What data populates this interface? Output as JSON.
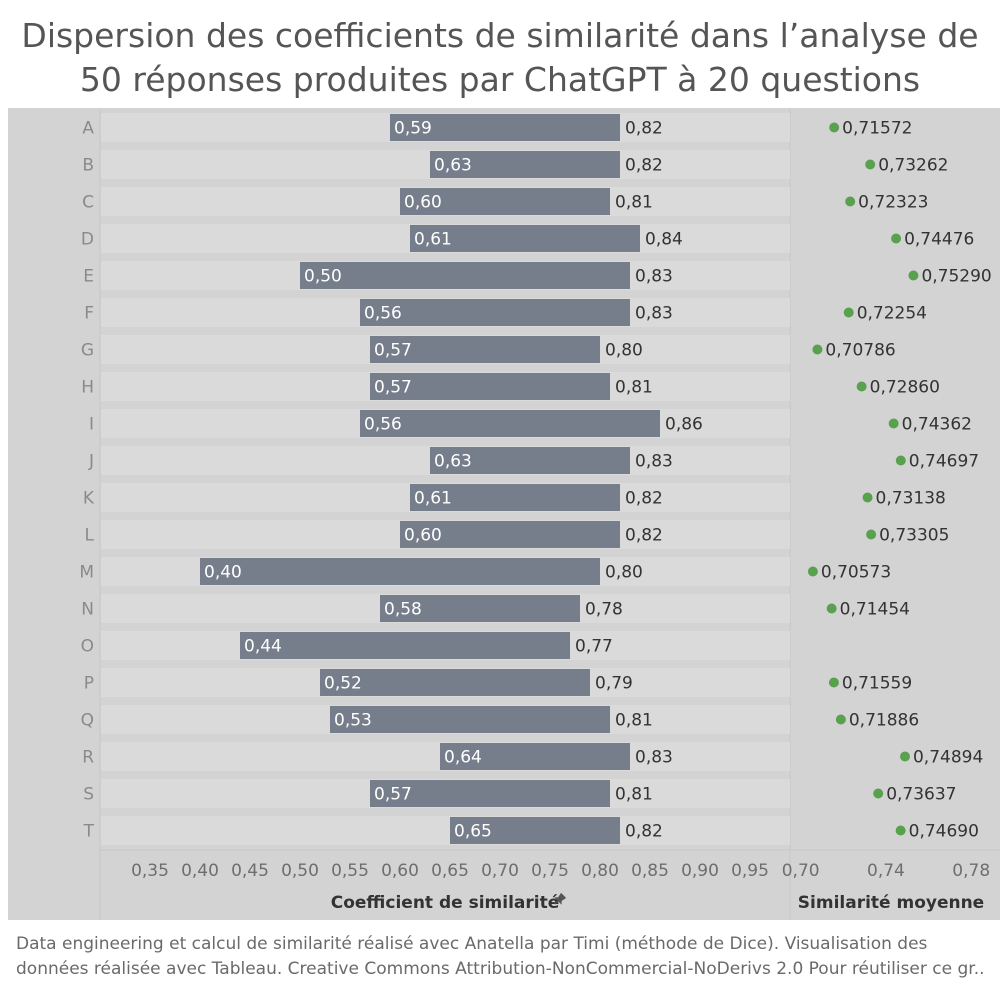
{
  "title_line1": "Dispersion des coefficients de similarité dans l’analyse de",
  "title_line2": "50 réponses produites par ChatGPT à 20 questions",
  "footer_line1": "Data engineering et calcul de similarité réalisé avec Anatella par Timi (méthode de Dice). Visualisation des",
  "footer_line2": "données réalisée avec Tableau. Creative Commons Attribution-NonCommercial-NoDerivs 2.0 Pour réutiliser ce gr..",
  "colors": {
    "background": "#d3d3d3",
    "band": "#dadada",
    "bar": "#767d8b",
    "dot": "#59a14f",
    "text": "#555555"
  },
  "chart_data": [
    {
      "type": "bar",
      "subtype": "range (gantt)",
      "xlabel": "Coefficient de similarité",
      "xlabel_icon": "pin-icon",
      "xlim": [
        0.3,
        0.99
      ],
      "x_ticks": [
        "0,35",
        "0,40",
        "0,45",
        "0,50",
        "0,55",
        "0,60",
        "0,65",
        "0,70",
        "0,75",
        "0,80",
        "0,85",
        "0,90",
        "0,95"
      ],
      "categories": [
        "A",
        "B",
        "C",
        "D",
        "E",
        "F",
        "G",
        "H",
        "I",
        "J",
        "K",
        "L",
        "M",
        "N",
        "O",
        "P",
        "Q",
        "R",
        "S",
        "T"
      ],
      "series": [
        {
          "name": "min",
          "values": [
            0.59,
            0.63,
            0.6,
            0.61,
            0.5,
            0.56,
            0.57,
            0.57,
            0.56,
            0.63,
            0.61,
            0.6,
            0.4,
            0.58,
            0.44,
            0.52,
            0.53,
            0.64,
            0.57,
            0.65
          ],
          "labels": [
            "0,59",
            "0,63",
            "0,60",
            "0,61",
            "0,50",
            "0,56",
            "0,57",
            "0,57",
            "0,56",
            "0,63",
            "0,61",
            "0,60",
            "0,40",
            "0,58",
            "0,44",
            "0,52",
            "0,53",
            "0,64",
            "0,57",
            "0,65"
          ]
        },
        {
          "name": "max",
          "values": [
            0.82,
            0.82,
            0.81,
            0.84,
            0.83,
            0.83,
            0.8,
            0.81,
            0.86,
            0.83,
            0.82,
            0.82,
            0.8,
            0.78,
            0.77,
            0.79,
            0.81,
            0.83,
            0.81,
            0.82
          ],
          "labels": [
            "0,82",
            "0,82",
            "0,81",
            "0,84",
            "0,83",
            "0,83",
            "0,80",
            "0,81",
            "0,86",
            "0,83",
            "0,82",
            "0,82",
            "0,80",
            "0,78",
            "0,77",
            "0,79",
            "0,81",
            "0,83",
            "0,81",
            "0,82"
          ]
        }
      ],
      "grid": false
    },
    {
      "type": "scatter",
      "xlabel": "Similarité moyenne",
      "xlim": [
        0.695,
        0.7935
      ],
      "x_ticks": [
        "0,70",
        "0,74",
        "0,78"
      ],
      "categories": [
        "A",
        "B",
        "C",
        "D",
        "E",
        "F",
        "G",
        "H",
        "I",
        "J",
        "K",
        "L",
        "M",
        "N",
        "O",
        "P",
        "Q",
        "R",
        "S",
        "T"
      ],
      "values": [
        0.71572,
        0.73262,
        0.72323,
        0.74476,
        0.7529,
        0.72254,
        0.70786,
        0.7286,
        0.74362,
        0.74697,
        0.73138,
        0.73305,
        0.70573,
        0.71454,
        null,
        0.71559,
        0.71886,
        0.74894,
        0.73637,
        0.7469
      ],
      "labels": [
        "0,71572",
        "0,73262",
        "0,72323",
        "0,74476",
        "0,75290",
        "0,72254",
        "0,70786",
        "0,72860",
        "0,74362",
        "0,74697",
        "0,73138",
        "0,73305",
        "0,70573",
        "0,71454",
        "",
        "0,71559",
        "0,71886",
        "0,74894",
        "0,73637",
        "0,74690"
      ],
      "grid": false
    }
  ]
}
